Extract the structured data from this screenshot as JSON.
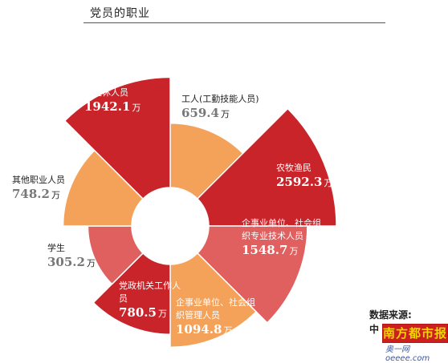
{
  "title": "党员的职业",
  "source_label": "数据来源:",
  "source_org": "中",
  "logo_text": "南方都市报",
  "watermark_text": "奥一网oeeee.com",
  "unit": "万",
  "chart_data": {
    "type": "polar-area",
    "series": [
      {
        "name": "工人(工勤技能人员)",
        "value": 659.4,
        "display": "659.4",
        "color": "#f4a25a"
      },
      {
        "name": "农牧渔民",
        "value": 2592.3,
        "display": "2592.3",
        "color": "#c9242a"
      },
      {
        "name": "企事业单位、社会组织专业技术人员",
        "value": 1548.7,
        "display": "1548.7",
        "color": "#e06060"
      },
      {
        "name": "企事业单位、社会组织管理人员",
        "value": 1094.8,
        "display": "1094.8",
        "color": "#f4a25a"
      },
      {
        "name": "党政机关工作人员",
        "value": 780.5,
        "display": "780.5",
        "color": "#c9242a"
      },
      {
        "name": "学生",
        "value": 305.2,
        "display": "305.2",
        "color": "#e06060"
      },
      {
        "name": "其他职业人员",
        "value": 748.2,
        "display": "748.2",
        "color": "#f4a25a"
      },
      {
        "name": "离退休人员",
        "value": 1942.1,
        "display": "1942.1",
        "color": "#c9242a"
      }
    ]
  }
}
